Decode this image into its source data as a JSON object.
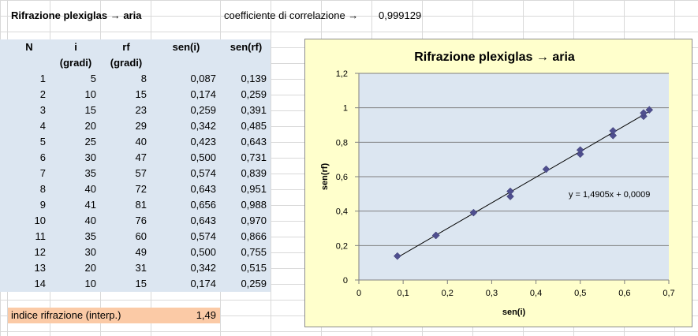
{
  "sheet": {
    "title": "Rifrazione plexiglas → aria",
    "corr_label": "coefficiente di correlazione →",
    "corr_value": "0,999129",
    "headers": {
      "n": "N",
      "i": "i",
      "i_unit": "(gradi)",
      "rf": "rf",
      "rf_unit": "(gradi)",
      "sen_i": "sen(i)",
      "sen_rf": "sen(rf)"
    },
    "rows": [
      {
        "n": "1",
        "i": "5",
        "rf": "8",
        "sen_i": "0,087",
        "sen_rf": "0,139"
      },
      {
        "n": "2",
        "i": "10",
        "rf": "15",
        "sen_i": "0,174",
        "sen_rf": "0,259"
      },
      {
        "n": "3",
        "i": "15",
        "rf": "23",
        "sen_i": "0,259",
        "sen_rf": "0,391"
      },
      {
        "n": "4",
        "i": "20",
        "rf": "29",
        "sen_i": "0,342",
        "sen_rf": "0,485"
      },
      {
        "n": "5",
        "i": "25",
        "rf": "40",
        "sen_i": "0,423",
        "sen_rf": "0,643"
      },
      {
        "n": "6",
        "i": "30",
        "rf": "47",
        "sen_i": "0,500",
        "sen_rf": "0,731"
      },
      {
        "n": "7",
        "i": "35",
        "rf": "57",
        "sen_i": "0,574",
        "sen_rf": "0,839"
      },
      {
        "n": "8",
        "i": "40",
        "rf": "72",
        "sen_i": "0,643",
        "sen_rf": "0,951"
      },
      {
        "n": "9",
        "i": "41",
        "rf": "81",
        "sen_i": "0,656",
        "sen_rf": "0,988"
      },
      {
        "n": "10",
        "i": "40",
        "rf": "76",
        "sen_i": "0,643",
        "sen_rf": "0,970"
      },
      {
        "n": "11",
        "i": "35",
        "rf": "60",
        "sen_i": "0,574",
        "sen_rf": "0,866"
      },
      {
        "n": "12",
        "i": "30",
        "rf": "49",
        "sen_i": "0,500",
        "sen_rf": "0,755"
      },
      {
        "n": "13",
        "i": "20",
        "rf": "31",
        "sen_i": "0,342",
        "sen_rf": "0,515"
      },
      {
        "n": "14",
        "i": "10",
        "rf": "15",
        "sen_i": "0,174",
        "sen_rf": "0,259"
      }
    ],
    "index_label": "indice rifrazione (interp.)",
    "index_value": "1,49"
  },
  "colors": {
    "table_fill": "#dce6f1",
    "index_fill": "#fbcaa6",
    "chart_bg": "#ffffcc",
    "plot_bg": "#dce6f1",
    "marker": "#4f4f8f"
  },
  "chart_data": {
    "type": "scatter",
    "title": "Rifrazione plexiglas → aria",
    "xlabel": "sen(i)",
    "ylabel": "sen(rf)",
    "xlim": [
      0,
      0.7
    ],
    "ylim": [
      0,
      1.2
    ],
    "x_ticks": [
      "0",
      "0,1",
      "0,2",
      "0,3",
      "0,4",
      "0,5",
      "0,6",
      "0,7"
    ],
    "y_ticks": [
      "0",
      "0,2",
      "0,4",
      "0,6",
      "0,8",
      "1",
      "1,2"
    ],
    "x": [
      0.087,
      0.174,
      0.259,
      0.342,
      0.423,
      0.5,
      0.574,
      0.643,
      0.656,
      0.643,
      0.574,
      0.5,
      0.342,
      0.174
    ],
    "y": [
      0.139,
      0.259,
      0.391,
      0.485,
      0.643,
      0.731,
      0.839,
      0.951,
      0.988,
      0.97,
      0.866,
      0.755,
      0.515,
      0.259
    ],
    "trendline": {
      "slope": 1.4905,
      "intercept": 0.0009,
      "label": "y = 1,4905x + 0,0009"
    },
    "grid": "horizontal",
    "legend": "none"
  }
}
